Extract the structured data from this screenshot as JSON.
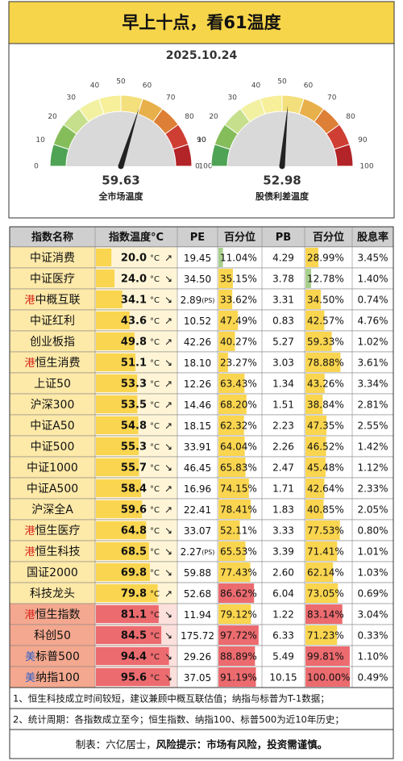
{
  "header": {
    "title": "早上十点，看61温度",
    "date": "2025.10.24"
  },
  "gauge_ticks": [
    0,
    10,
    20,
    30,
    40,
    50,
    60,
    70,
    80,
    90,
    100
  ],
  "gauges": [
    {
      "value": 59.63,
      "label": "全市场温度"
    },
    {
      "value": 52.98,
      "label": "股债利差温度"
    }
  ],
  "table": {
    "columns": [
      "指数名称",
      "指数温度°C",
      "PE",
      "百分位",
      "PB",
      "百分位",
      "股息率"
    ],
    "unit": "°C",
    "rows": [
      {
        "name": "中证消费",
        "temp": {
          "value": 20.0,
          "label": "20.0"
        },
        "arrow": "↗",
        "pe": "19.45",
        "pe_pct": {
          "value": 11.04,
          "label": "11.04%"
        },
        "pb": "4.29",
        "pb_pct": {
          "value": 28.99,
          "label": "28.99%"
        },
        "dividend": "3.45%"
      },
      {
        "name": "中证医疗",
        "temp": {
          "value": 24.0,
          "label": "24.0"
        },
        "arrow": "↘",
        "pe": "34.50",
        "pe_pct": {
          "value": 35.15,
          "label": "35.15%"
        },
        "pb": "3.78",
        "pb_pct": {
          "value": 12.78,
          "label": "12.78%"
        },
        "dividend": "1.40%"
      },
      {
        "prefix": "港",
        "name": "中概互联",
        "temp": {
          "value": 34.1,
          "label": "34.1"
        },
        "arrow": "↘",
        "pe": "2.89",
        "pe_note": "(PS)",
        "pe_pct": {
          "value": 33.62,
          "label": "33.62%"
        },
        "pb": "3.31",
        "pb_pct": {
          "value": 34.5,
          "label": "34.50%"
        },
        "dividend": "0.74%"
      },
      {
        "name": "中证红利",
        "temp": {
          "value": 43.6,
          "label": "43.6"
        },
        "arrow": "↗",
        "pe": "10.52",
        "pe_pct": {
          "value": 47.49,
          "label": "47.49%"
        },
        "pb": "0.83",
        "pb_pct": {
          "value": 42.57,
          "label": "42.57%"
        },
        "dividend": "4.76%"
      },
      {
        "name": "创业板指",
        "temp": {
          "value": 49.8,
          "label": "49.8"
        },
        "arrow": "↗",
        "pe": "42.26",
        "pe_pct": {
          "value": 40.27,
          "label": "40.27%"
        },
        "pb": "5.27",
        "pb_pct": {
          "value": 59.33,
          "label": "59.33%"
        },
        "dividend": "1.02%"
      },
      {
        "prefix": "港",
        "name": "恒生消费",
        "temp": {
          "value": 51.1,
          "label": "51.1"
        },
        "arrow": "↘",
        "pe": "18.10",
        "pe_pct": {
          "value": 23.27,
          "label": "23.27%"
        },
        "pb": "3.03",
        "pb_pct": {
          "value": 78.88,
          "label": "78.88%"
        },
        "dividend": "3.61%"
      },
      {
        "name": "上证50",
        "temp": {
          "value": 53.3,
          "label": "53.3"
        },
        "arrow": "↗",
        "pe": "12.26",
        "pe_pct": {
          "value": 63.43,
          "label": "63.43%"
        },
        "pb": "1.34",
        "pb_pct": {
          "value": 43.26,
          "label": "43.26%"
        },
        "dividend": "3.34%"
      },
      {
        "name": "沪深300",
        "temp": {
          "value": 53.5,
          "label": "53.5"
        },
        "arrow": "↗",
        "pe": "14.46",
        "pe_pct": {
          "value": 68.2,
          "label": "68.20%"
        },
        "pb": "1.51",
        "pb_pct": {
          "value": 38.84,
          "label": "38.84%"
        },
        "dividend": "2.81%"
      },
      {
        "name": "中证A50",
        "temp": {
          "value": 54.8,
          "label": "54.8"
        },
        "arrow": "↗",
        "pe": "18.15",
        "pe_pct": {
          "value": 62.32,
          "label": "62.32%"
        },
        "pb": "2.23",
        "pb_pct": {
          "value": 47.35,
          "label": "47.35%"
        },
        "dividend": "2.55%"
      },
      {
        "name": "中证500",
        "temp": {
          "value": 55.3,
          "label": "55.3"
        },
        "arrow": "↘",
        "pe": "33.91",
        "pe_pct": {
          "value": 64.04,
          "label": "64.04%"
        },
        "pb": "2.26",
        "pb_pct": {
          "value": 46.52,
          "label": "46.52%"
        },
        "dividend": "1.42%"
      },
      {
        "name": "中证1000",
        "temp": {
          "value": 55.7,
          "label": "55.7"
        },
        "arrow": "↘",
        "pe": "46.45",
        "pe_pct": {
          "value": 65.83,
          "label": "65.83%"
        },
        "pb": "2.47",
        "pb_pct": {
          "value": 45.48,
          "label": "45.48%"
        },
        "dividend": "1.12%"
      },
      {
        "name": "中证A500",
        "temp": {
          "value": 58.4,
          "label": "58.4"
        },
        "arrow": "↗",
        "pe": "16.96",
        "pe_pct": {
          "value": 74.15,
          "label": "74.15%"
        },
        "pb": "1.71",
        "pb_pct": {
          "value": 42.64,
          "label": "42.64%"
        },
        "dividend": "2.33%"
      },
      {
        "name": "沪深全A",
        "temp": {
          "value": 59.6,
          "label": "59.6"
        },
        "arrow": "↗",
        "pe": "22.41",
        "pe_pct": {
          "value": 78.41,
          "label": "78.41%"
        },
        "pb": "1.83",
        "pb_pct": {
          "value": 40.85,
          "label": "40.85%"
        },
        "dividend": "2.05%"
      },
      {
        "prefix": "港",
        "name": "恒生医疗",
        "temp": {
          "value": 64.8,
          "label": "64.8"
        },
        "arrow": "↘",
        "pe": "33.07",
        "pe_pct": {
          "value": 52.11,
          "label": "52.11%"
        },
        "pb": "3.33",
        "pb_pct": {
          "value": 77.53,
          "label": "77.53%"
        },
        "dividend": "0.80%"
      },
      {
        "prefix": "港",
        "name": "恒生科技",
        "temp": {
          "value": 68.5,
          "label": "68.5"
        },
        "arrow": "↘",
        "pe": "2.27",
        "pe_note": "(PS)",
        "pe_pct": {
          "value": 65.53,
          "label": "65.53%"
        },
        "pb": "3.39",
        "pb_pct": {
          "value": 71.41,
          "label": "71.41%"
        },
        "dividend": "1.01%"
      },
      {
        "name": "国证2000",
        "temp": {
          "value": 69.8,
          "label": "69.8"
        },
        "arrow": "↘",
        "pe": "59.88",
        "pe_pct": {
          "value": 77.43,
          "label": "77.43%"
        },
        "pb": "2.60",
        "pb_pct": {
          "value": 62.14,
          "label": "62.14%"
        },
        "dividend": "1.03%"
      },
      {
        "name": "科技龙头",
        "temp": {
          "value": 79.8,
          "label": "79.8"
        },
        "arrow": "↗",
        "pe": "52.68",
        "pe_pct": {
          "value": 86.62,
          "label": "86.62%"
        },
        "pb": "6.04",
        "pb_pct": {
          "value": 73.05,
          "label": "73.05%"
        },
        "dividend": "0.69%"
      },
      {
        "prefix": "港",
        "name": "恒生指数",
        "temp": {
          "value": 81.1,
          "label": "81.1"
        },
        "arrow": "↘",
        "pe": "11.94",
        "pe_pct": {
          "value": 79.12,
          "label": "79.12%"
        },
        "pb": "1.22",
        "pb_pct": {
          "value": 83.14,
          "label": "83.14%"
        },
        "dividend": "3.04%"
      },
      {
        "name": "科创50",
        "temp": {
          "value": 84.5,
          "label": "84.5"
        },
        "arrow": "↘",
        "pe": "175.72",
        "pe_pct": {
          "value": 97.72,
          "label": "97.72%"
        },
        "pb": "6.33",
        "pb_pct": {
          "value": 71.23,
          "label": "71.23%"
        },
        "dividend": "0.33%"
      },
      {
        "prefix": "美",
        "name": "标普500",
        "temp": {
          "value": 94.4,
          "label": "94.4"
        },
        "arrow": "↘",
        "pe": "29.26",
        "pe_pct": {
          "value": 88.89,
          "label": "88.89%"
        },
        "pb": "5.49",
        "pb_pct": {
          "value": 99.81,
          "label": "99.81%"
        },
        "dividend": "1.10%"
      },
      {
        "prefix": "美",
        "name": "纳指100",
        "temp": {
          "value": 95.6,
          "label": "95.6"
        },
        "arrow": "↘",
        "pe": "37.05",
        "pe_pct": {
          "value": 91.19,
          "label": "91.19%"
        },
        "pb": "10.15",
        "pb_pct": {
          "value": 100.0,
          "label": "100.00%"
        },
        "dividend": "0.49%"
      }
    ]
  },
  "notes": [
    "1、恒生科技成立时间较短，建议兼顾中概互联估值；纳指与标普为T-1数据；",
    "2、统计周期：各指数成立至今；恒生指数、纳指100、标普500为近10年历史；"
  ],
  "footer": {
    "author": "制表：六亿居士，",
    "warning": "风险提示：市场有风险，投资需谨慎。"
  }
}
